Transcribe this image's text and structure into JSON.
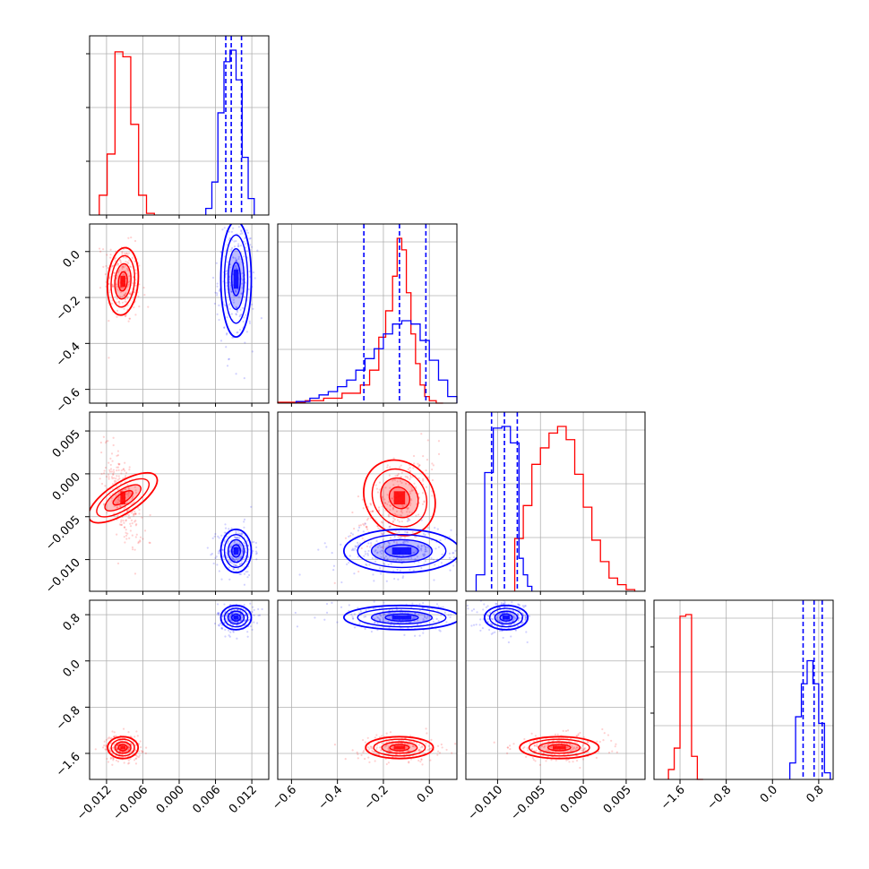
{
  "chart_data": {
    "type": "corner",
    "n_params": 4,
    "grid": true,
    "colors": {
      "series_a": "#ff0000",
      "series_b": "#0000ff",
      "grid": "#b0b0b0",
      "axis": "#000000"
    },
    "params": [
      {
        "range": [
          -0.0148,
          0.0148
        ],
        "ticks": [
          -0.012,
          -0.006,
          0.0,
          0.006,
          0.012
        ],
        "tick_labels": [
          "−0.012",
          "−0.006",
          "0.000",
          "0.006",
          "0.012"
        ]
      },
      {
        "range": [
          -0.66,
          0.12
        ],
        "ticks": [
          -0.6,
          -0.4,
          -0.2,
          0.0
        ],
        "tick_labels": [
          "−0.6",
          "−0.4",
          "−0.2",
          "0.0"
        ]
      },
      {
        "range": [
          -0.0137,
          0.0072
        ],
        "ticks": [
          -0.01,
          -0.005,
          0.0,
          0.005
        ],
        "tick_labels": [
          "−0.010",
          "−0.005",
          "0.000",
          "0.005"
        ]
      },
      {
        "range": [
          -2.05,
          1.05
        ],
        "ticks": [
          -1.6,
          -0.8,
          0.0,
          0.8
        ],
        "tick_labels": [
          "−1.6",
          "−0.8",
          "0.0",
          "0.8"
        ]
      }
    ],
    "series": [
      {
        "color": "#ff0000",
        "mean": [
          -0.0093,
          -0.13,
          -0.0028,
          -1.5
        ],
        "std": [
          0.0012,
          0.07,
          0.0022,
          0.09
        ],
        "hist1d": [
          {
            "edges": [
              -0.0132,
              -0.0119,
              -0.0106,
              -0.0093,
              -0.008,
              -0.0067,
              -0.0054,
              -0.0041
            ],
            "heights": [
              0.12,
              0.37,
              0.99,
              0.96,
              0.55,
              0.12,
              0.01
            ]
          },
          {
            "edges": [
              -0.66,
              -0.54,
              -0.46,
              -0.38,
              -0.3,
              -0.26,
              -0.22,
              -0.19,
              -0.16,
              -0.14,
              -0.12,
              -0.1,
              -0.08,
              -0.06,
              -0.04,
              -0.02,
              0.0,
              0.03,
              0.06
            ],
            "heights": [
              0.005,
              0.015,
              0.03,
              0.06,
              0.11,
              0.2,
              0.4,
              0.56,
              0.77,
              1.0,
              0.93,
              0.67,
              0.42,
              0.24,
              0.11,
              0.04,
              0.015,
              0.0
            ]
          },
          {
            "edges": [
              -0.008,
              -0.007,
              -0.006,
              -0.005,
              -0.004,
              -0.003,
              -0.002,
              -0.001,
              0.0,
              0.001,
              0.002,
              0.003,
              0.004,
              0.005,
              0.006
            ],
            "heights": [
              0.32,
              0.52,
              0.77,
              0.87,
              0.96,
              1.0,
              0.92,
              0.71,
              0.51,
              0.31,
              0.18,
              0.08,
              0.04,
              0.01
            ]
          },
          {
            "edges": [
              -1.8,
              -1.7,
              -1.6,
              -1.5,
              -1.4,
              -1.3,
              -1.2
            ],
            "heights": [
              0.06,
              0.19,
              0.99,
              1.0,
              0.14,
              0.0
            ]
          }
        ]
      },
      {
        "color": "#0000ff",
        "mean": [
          0.0094,
          -0.12,
          -0.009,
          0.75
        ],
        "std": [
          0.0012,
          0.12,
          0.0012,
          0.1
        ],
        "quantiles": [
          [
            0.0077,
            0.0086,
            0.0103
          ],
          [
            -0.285,
            -0.13,
            -0.015
          ],
          [
            -0.0107,
            -0.0092,
            -0.0077
          ],
          [
            0.53,
            0.72,
            0.86
          ]
        ],
        "hist1d": [
          {
            "edges": [
              0.0044,
              0.0054,
              0.0064,
              0.0074,
              0.0084,
              0.0094,
              0.0104,
              0.0114,
              0.0124
            ],
            "heights": [
              0.04,
              0.2,
              0.62,
              0.93,
              1.0,
              0.82,
              0.35,
              0.1
            ]
          },
          {
            "edges": [
              -0.58,
              -0.52,
              -0.48,
              -0.44,
              -0.4,
              -0.36,
              -0.32,
              -0.28,
              -0.24,
              -0.2,
              -0.16,
              -0.12,
              -0.08,
              -0.04,
              0.0,
              0.04,
              0.08,
              0.12
            ],
            "heights": [
              0.01,
              0.03,
              0.05,
              0.07,
              0.1,
              0.14,
              0.2,
              0.27,
              0.33,
              0.42,
              0.48,
              0.5,
              0.48,
              0.38,
              0.26,
              0.14,
              0.04
            ]
          },
          {
            "edges": [
              -0.0125,
              -0.0115,
              -0.0105,
              -0.0095,
              -0.0085,
              -0.0075,
              -0.007,
              -0.0065,
              -0.006
            ],
            "heights": [
              0.1,
              0.72,
              0.99,
              1.0,
              0.9,
              0.2,
              0.1,
              0.03
            ]
          },
          {
            "edges": [
              0.3,
              0.4,
              0.5,
              0.6,
              0.7,
              0.8,
              0.9,
              1.0
            ],
            "heights": [
              0.1,
              0.38,
              0.58,
              0.72,
              0.58,
              0.34,
              0.04
            ]
          }
        ]
      }
    ]
  }
}
